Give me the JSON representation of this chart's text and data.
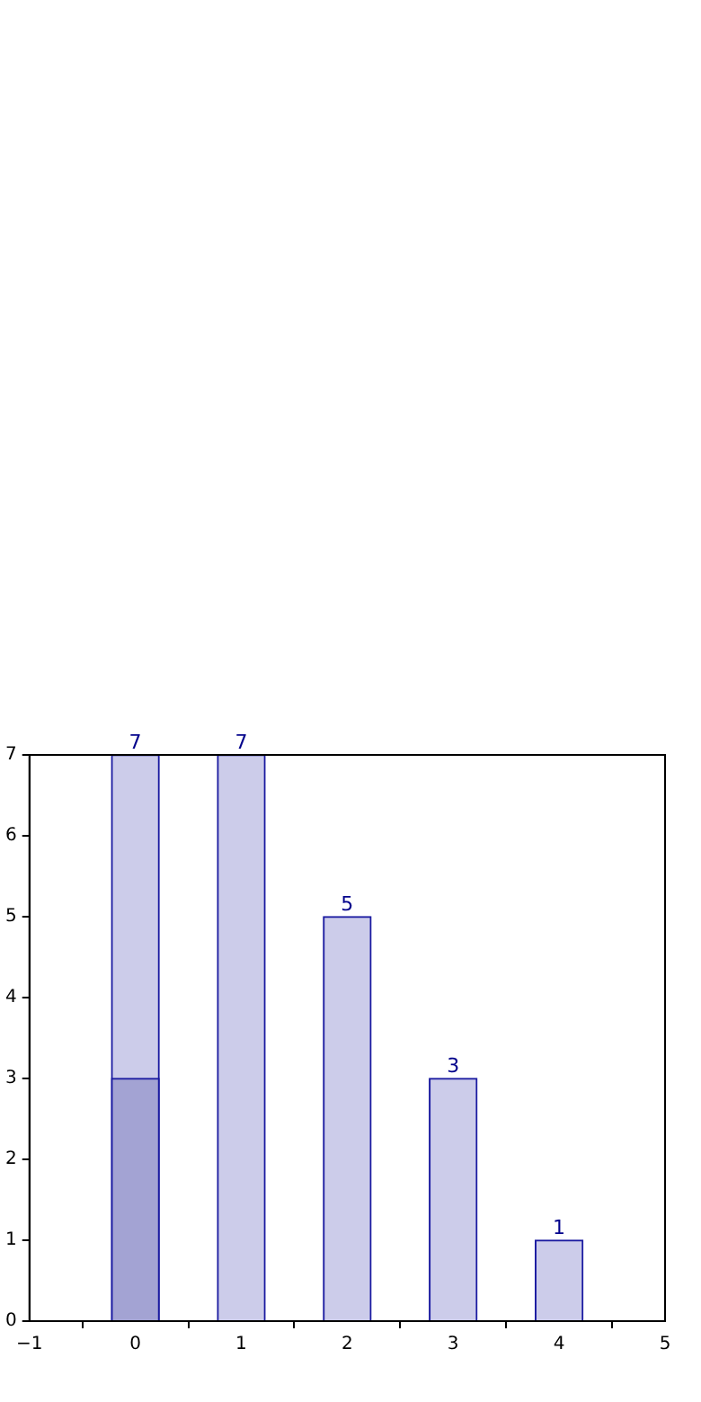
{
  "chart_data": {
    "type": "bar",
    "xlim": [
      -1,
      5
    ],
    "xticks": [
      {
        "value": -1,
        "label": "−1"
      },
      0,
      1,
      2,
      3,
      4,
      5
    ],
    "ylim": [
      0,
      7
    ],
    "yticks": [
      0,
      1,
      2,
      3,
      4,
      5,
      6,
      7
    ],
    "grid": false,
    "legend": false,
    "series": [
      {
        "x": [
          0,
          1,
          2,
          3,
          4
        ],
        "values": [
          7,
          7,
          5,
          3,
          1
        ],
        "color": "#ccccea",
        "value_labels": [
          "7",
          "7",
          "5",
          "3",
          "1"
        ]
      },
      {
        "x": [
          0
        ],
        "values": [
          3
        ],
        "color": "#a3a3d3"
      }
    ]
  }
}
